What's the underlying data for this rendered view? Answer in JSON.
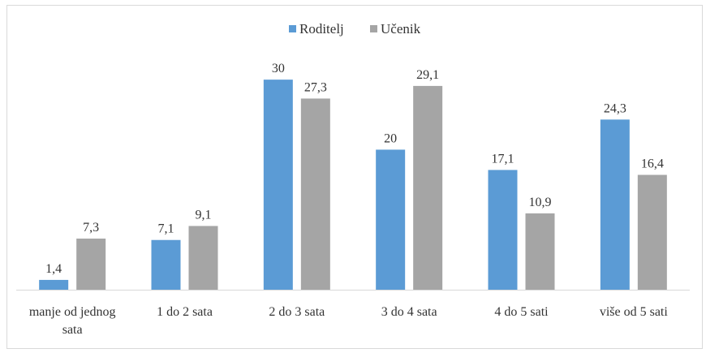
{
  "chart_data": {
    "type": "bar",
    "categories": [
      [
        "manje od jednog",
        "sata"
      ],
      [
        "1 do 2 sata"
      ],
      [
        "2 do 3 sata"
      ],
      [
        "3 do 4 sata"
      ],
      [
        "4 do 5 sati"
      ],
      [
        "više od 5 sati"
      ]
    ],
    "series": [
      {
        "name": "Roditelj",
        "color": "#5b9bd5",
        "values": [
          1.4,
          7.1,
          30,
          20,
          17.1,
          24.3
        ],
        "labels": [
          "1,4",
          "7,1",
          "30",
          "20",
          "17,1",
          "24,3"
        ]
      },
      {
        "name": "Učenik",
        "color": "#a5a5a5",
        "values": [
          7.3,
          9.1,
          27.3,
          29.1,
          10.9,
          16.4
        ],
        "labels": [
          "7,3",
          "9,1",
          "27,3",
          "29,1",
          "10,9",
          "16,4"
        ]
      }
    ],
    "ylim": [
      0,
      35
    ],
    "grid": false,
    "legend_position": "top-center",
    "axis_color": "#d9d9d9",
    "text_color": "#333333"
  }
}
